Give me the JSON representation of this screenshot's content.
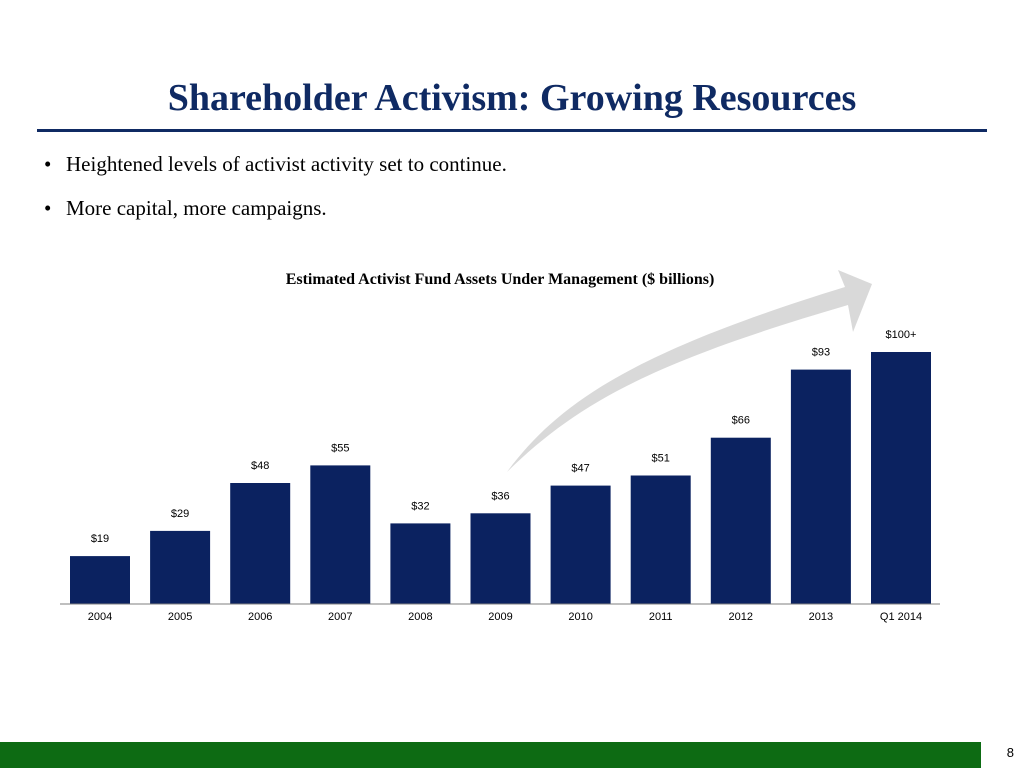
{
  "slide": {
    "title": "Shareholder Activism: Growing Resources",
    "bullets": [
      "Heightened levels of activist activity set to continue.",
      "More capital, more campaigns."
    ],
    "bullet_glyph": "•",
    "page_number": "8"
  },
  "colors": {
    "title": "#0f2a63",
    "bar": "#0b2260",
    "footer": "#0d6b13",
    "arrow": "#d9d9d9"
  },
  "chart_data": {
    "type": "bar",
    "title": "Estimated Activist Fund Assets Under Management ($ billions)",
    "categories": [
      "2004",
      "2005",
      "2006",
      "2007",
      "2008",
      "2009",
      "2010",
      "2011",
      "2012",
      "2013",
      "Q1 2014"
    ],
    "values": [
      19,
      29,
      48,
      55,
      32,
      36,
      47,
      51,
      66,
      93,
      100
    ],
    "data_labels": [
      "$19",
      "$29",
      "$48",
      "$55",
      "$32",
      "$36",
      "$47",
      "$51",
      "$66",
      "$93",
      "$100+"
    ],
    "xlabel": "",
    "ylabel": "",
    "ylim": [
      0,
      100
    ],
    "grid": false,
    "legend": "none",
    "annotation": "upward-trend-arrow"
  }
}
